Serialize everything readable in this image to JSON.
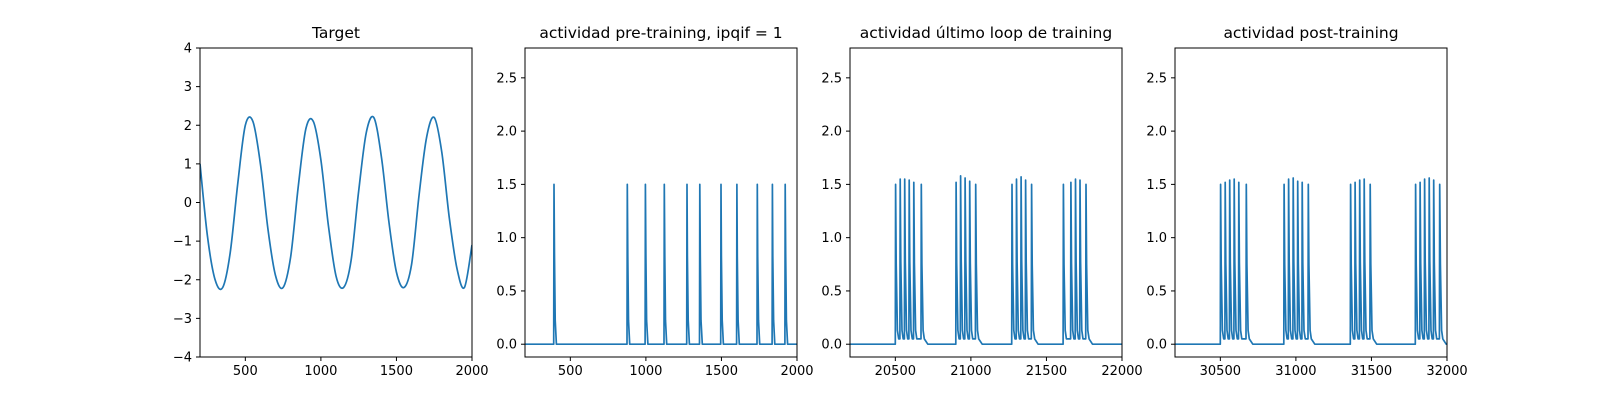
{
  "chart_data": [
    {
      "type": "line",
      "title": "Target",
      "xlabel": "",
      "ylabel": "",
      "xlim": [
        200,
        2000
      ],
      "ylim": [
        -4,
        4
      ],
      "xticks": [
        500,
        1000,
        1500,
        2000
      ],
      "yticks": [
        -4,
        -3,
        -2,
        -1,
        0,
        1,
        2,
        3,
        4
      ],
      "grid": false,
      "series": [
        {
          "x": [
            200,
            250,
            300,
            350,
            400,
            450,
            500,
            550,
            600,
            650,
            700,
            750,
            800,
            850,
            900,
            950,
            1000,
            1050,
            1100,
            1150,
            1200,
            1250,
            1300,
            1350,
            1400,
            1450,
            1500,
            1550,
            1600,
            1650,
            1700,
            1750,
            1800,
            1850,
            1900,
            1950,
            2000
          ],
          "y": [
            1.0,
            -0.9,
            -2.0,
            -2.2,
            -1.3,
            0.5,
            2.0,
            2.1,
            1.0,
            -0.7,
            -1.9,
            -2.2,
            -1.4,
            0.4,
            1.9,
            2.1,
            1.1,
            -0.6,
            -1.9,
            -2.2,
            -1.5,
            0.3,
            1.8,
            2.2,
            1.2,
            -0.5,
            -1.8,
            -2.2,
            -1.6,
            0.2,
            1.7,
            2.2,
            1.3,
            -0.4,
            -1.7,
            -2.2,
            -1.1
          ]
        }
      ]
    },
    {
      "type": "line",
      "title": "actividad pre-training, ipqif = 1",
      "xlabel": "",
      "ylabel": "",
      "xlim": [
        200,
        2000
      ],
      "ylim": [
        -0.12,
        2.78
      ],
      "xticks": [
        500,
        1000,
        1500,
        2000
      ],
      "yticks": [
        0.0,
        0.5,
        1.0,
        1.5,
        2.0,
        2.5
      ],
      "ytick_labels": [
        "0.0",
        "0.5",
        "1.0",
        "1.5",
        "2.0",
        "2.5"
      ],
      "grid": false,
      "baseline": 0,
      "spike_height": 1.5,
      "spike_times": [
        390,
        875,
        995,
        1120,
        1270,
        1355,
        1495,
        1600,
        1735,
        1835,
        1920
      ]
    },
    {
      "type": "line",
      "title": "actividad último loop de training",
      "xlabel": "",
      "ylabel": "",
      "xlim": [
        20200,
        22000
      ],
      "ylim": [
        -0.12,
        2.78
      ],
      "xticks": [
        20500,
        21000,
        21500,
        22000
      ],
      "yticks": [
        0.0,
        0.5,
        1.0,
        1.5,
        2.0,
        2.5
      ],
      "ytick_labels": [
        "0.0",
        "0.5",
        "1.0",
        "1.5",
        "2.0",
        "2.5"
      ],
      "grid": false,
      "baseline": 0,
      "spike_bursts": [
        {
          "times": [
            20500,
            20530,
            20560,
            20590,
            20620,
            20670
          ],
          "peaks": [
            1.5,
            1.55,
            1.55,
            1.54,
            1.52,
            1.5
          ]
        },
        {
          "times": [
            20900,
            20930,
            20960,
            20990,
            21030
          ],
          "peaks": [
            1.52,
            1.58,
            1.56,
            1.53,
            1.5
          ]
        },
        {
          "times": [
            21270,
            21300,
            21330,
            21360,
            21400
          ],
          "peaks": [
            1.5,
            1.55,
            1.57,
            1.54,
            1.5
          ]
        },
        {
          "times": [
            21610,
            21660,
            21690,
            21720,
            21760
          ],
          "peaks": [
            1.5,
            1.52,
            1.55,
            1.54,
            1.5
          ]
        }
      ],
      "burst_trough": 0.05
    },
    {
      "type": "line",
      "title": "actividad post-training",
      "xlabel": "",
      "ylabel": "",
      "xlim": [
        30200,
        32000
      ],
      "ylim": [
        -0.12,
        2.78
      ],
      "xticks": [
        30500,
        31000,
        31500,
        32000
      ],
      "yticks": [
        0.0,
        0.5,
        1.0,
        1.5,
        2.0,
        2.5
      ],
      "ytick_labels": [
        "0.0",
        "0.5",
        "1.0",
        "1.5",
        "2.0",
        "2.5"
      ],
      "grid": false,
      "baseline": 0,
      "spike_bursts": [
        {
          "times": [
            30500,
            30530,
            30560,
            30590,
            30620,
            30670
          ],
          "peaks": [
            1.5,
            1.52,
            1.54,
            1.55,
            1.52,
            1.5
          ]
        },
        {
          "times": [
            30920,
            30950,
            30980,
            31010,
            31040,
            31080
          ],
          "peaks": [
            1.5,
            1.55,
            1.56,
            1.53,
            1.52,
            1.5
          ]
        },
        {
          "times": [
            31360,
            31390,
            31420,
            31450,
            31490
          ],
          "peaks": [
            1.5,
            1.52,
            1.54,
            1.55,
            1.5
          ]
        },
        {
          "times": [
            31790,
            31820,
            31850,
            31880,
            31910,
            31950
          ],
          "peaks": [
            1.5,
            1.52,
            1.55,
            1.56,
            1.54,
            1.5
          ]
        }
      ],
      "burst_trough": 0.05
    }
  ]
}
